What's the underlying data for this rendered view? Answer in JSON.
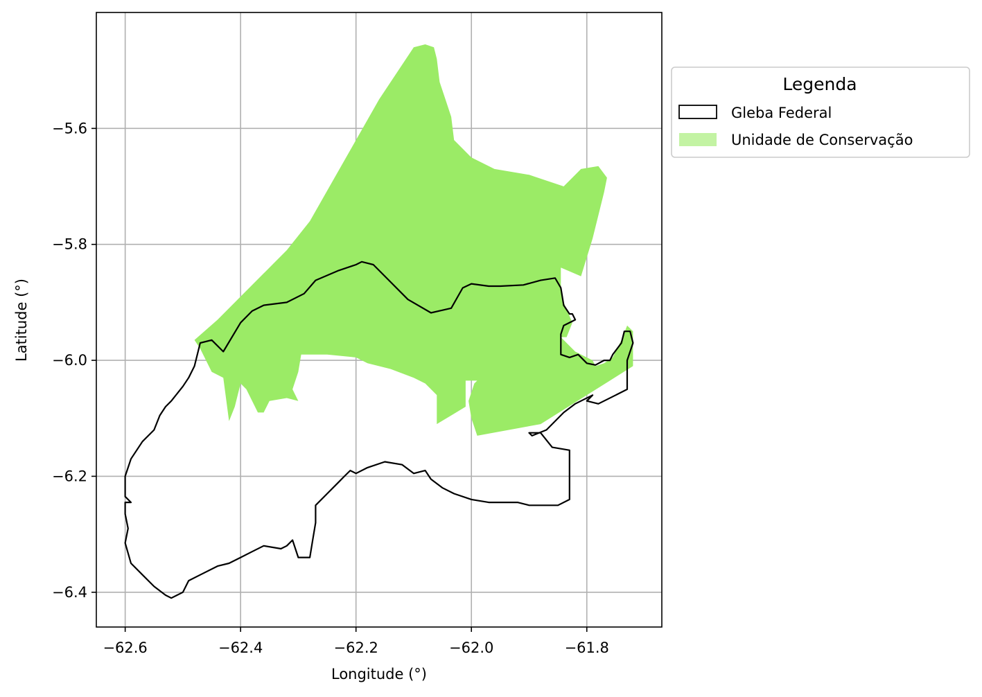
{
  "chart_data": {
    "type": "map",
    "xlabel": "Longitude (°)",
    "ylabel": "Latitude (°)",
    "xlim": [
      -62.65,
      -61.67
    ],
    "ylim": [
      -6.46,
      -5.4
    ],
    "grid": true,
    "x_ticks": [
      -62.6,
      -62.4,
      -62.2,
      -62.0,
      -61.8
    ],
    "y_ticks": [
      -5.6,
      -5.8,
      -6.0,
      -6.2,
      -6.4
    ],
    "x_tick_labels": [
      "−62.6",
      "−62.4",
      "−62.2",
      "−62.0",
      "−61.8"
    ],
    "y_tick_labels": [
      "−5.6",
      "−5.8",
      "−6.0",
      "−6.2",
      "−6.4"
    ],
    "legend": {
      "title": "Legenda",
      "placement": "outside upper right",
      "entries": [
        {
          "label": "Gleba Federal",
          "style": "outline",
          "color": "#000000"
        },
        {
          "label": "Unidade de Conservação",
          "style": "fill",
          "color": "#9beb66"
        }
      ]
    },
    "layers": [
      {
        "name": "Unidade de Conservação",
        "fill": "#9beb66",
        "coords": [
          [
            -62.48,
            -5.965
          ],
          [
            -62.44,
            -5.93
          ],
          [
            -62.32,
            -5.81
          ],
          [
            -62.28,
            -5.76
          ],
          [
            -62.16,
            -5.55
          ],
          [
            -62.1,
            -5.46
          ],
          [
            -62.08,
            -5.455
          ],
          [
            -62.065,
            -5.46
          ],
          [
            -62.06,
            -5.48
          ],
          [
            -62.055,
            -5.52
          ],
          [
            -62.045,
            -5.55
          ],
          [
            -62.035,
            -5.58
          ],
          [
            -62.03,
            -5.62
          ],
          [
            -62.0,
            -5.65
          ],
          [
            -61.96,
            -5.67
          ],
          [
            -61.9,
            -5.68
          ],
          [
            -61.84,
            -5.7
          ],
          [
            -61.81,
            -5.67
          ],
          [
            -61.78,
            -5.665
          ],
          [
            -61.765,
            -5.685
          ],
          [
            -61.77,
            -5.71
          ],
          [
            -61.78,
            -5.75
          ],
          [
            -61.79,
            -5.79
          ],
          [
            -61.81,
            -5.855
          ],
          [
            -61.845,
            -5.84
          ],
          [
            -61.845,
            -5.87
          ],
          [
            -61.84,
            -5.9
          ],
          [
            -61.825,
            -5.935
          ],
          [
            -61.835,
            -5.96
          ],
          [
            -61.845,
            -5.96
          ],
          [
            -61.83,
            -5.975
          ],
          [
            -61.82,
            -5.985
          ],
          [
            -61.81,
            -5.99
          ],
          [
            -61.79,
            -6.0
          ],
          [
            -61.785,
            -6.01
          ],
          [
            -61.77,
            -6.005
          ],
          [
            -61.755,
            -5.995
          ],
          [
            -61.74,
            -5.965
          ],
          [
            -61.73,
            -5.94
          ],
          [
            -61.72,
            -5.95
          ],
          [
            -61.72,
            -6.01
          ],
          [
            -61.76,
            -6.035
          ],
          [
            -61.88,
            -6.11
          ],
          [
            -61.99,
            -6.13
          ],
          [
            -62.0,
            -6.1
          ],
          [
            -62.005,
            -6.07
          ],
          [
            -61.995,
            -6.04
          ],
          [
            -61.99,
            -6.035
          ],
          [
            -62.01,
            -6.035
          ],
          [
            -62.01,
            -6.08
          ],
          [
            -62.035,
            -6.095
          ],
          [
            -62.06,
            -6.11
          ],
          [
            -62.06,
            -6.06
          ],
          [
            -62.08,
            -6.04
          ],
          [
            -62.1,
            -6.03
          ],
          [
            -62.14,
            -6.015
          ],
          [
            -62.18,
            -6.005
          ],
          [
            -62.2,
            -5.995
          ],
          [
            -62.25,
            -5.99
          ],
          [
            -62.295,
            -5.99
          ],
          [
            -62.3,
            -6.02
          ],
          [
            -62.31,
            -6.05
          ],
          [
            -62.3,
            -6.07
          ],
          [
            -62.32,
            -6.065
          ],
          [
            -62.35,
            -6.07
          ],
          [
            -62.36,
            -6.09
          ],
          [
            -62.37,
            -6.09
          ],
          [
            -62.39,
            -6.05
          ],
          [
            -62.4,
            -6.04
          ],
          [
            -62.41,
            -6.08
          ],
          [
            -62.42,
            -6.105
          ],
          [
            -62.43,
            -6.03
          ],
          [
            -62.45,
            -6.02
          ],
          [
            -62.47,
            -5.98
          ]
        ]
      },
      {
        "name": "Gleba Federal",
        "stroke": "#000000",
        "coords": [
          [
            -62.47,
            -5.97
          ],
          [
            -62.45,
            -5.965
          ],
          [
            -62.43,
            -5.985
          ],
          [
            -62.4,
            -5.935
          ],
          [
            -62.38,
            -5.915
          ],
          [
            -62.36,
            -5.905
          ],
          [
            -62.32,
            -5.9
          ],
          [
            -62.29,
            -5.885
          ],
          [
            -62.27,
            -5.862
          ],
          [
            -62.23,
            -5.845
          ],
          [
            -62.2,
            -5.835
          ],
          [
            -62.19,
            -5.83
          ],
          [
            -62.17,
            -5.835
          ],
          [
            -62.14,
            -5.865
          ],
          [
            -62.11,
            -5.895
          ],
          [
            -62.07,
            -5.918
          ],
          [
            -62.035,
            -5.91
          ],
          [
            -62.015,
            -5.875
          ],
          [
            -62.0,
            -5.868
          ],
          [
            -61.97,
            -5.872
          ],
          [
            -61.95,
            -5.872
          ],
          [
            -61.91,
            -5.87
          ],
          [
            -61.88,
            -5.862
          ],
          [
            -61.855,
            -5.858
          ],
          [
            -61.845,
            -5.875
          ],
          [
            -61.84,
            -5.905
          ],
          [
            -61.83,
            -5.92
          ],
          [
            -61.825,
            -5.92
          ],
          [
            -61.82,
            -5.93
          ],
          [
            -61.84,
            -5.94
          ],
          [
            -61.845,
            -5.955
          ],
          [
            -61.845,
            -5.99
          ],
          [
            -61.83,
            -5.995
          ],
          [
            -61.815,
            -5.99
          ],
          [
            -61.8,
            -6.005
          ],
          [
            -61.785,
            -6.008
          ],
          [
            -61.77,
            -6.0
          ],
          [
            -61.76,
            -6.0
          ],
          [
            -61.755,
            -5.99
          ],
          [
            -61.74,
            -5.97
          ],
          [
            -61.735,
            -5.95
          ],
          [
            -61.725,
            -5.95
          ],
          [
            -61.72,
            -5.97
          ],
          [
            -61.73,
            -6.0
          ],
          [
            -61.73,
            -6.05
          ],
          [
            -61.75,
            -6.06
          ],
          [
            -61.78,
            -6.075
          ],
          [
            -61.8,
            -6.07
          ],
          [
            -61.79,
            -6.06
          ],
          [
            -61.82,
            -6.075
          ],
          [
            -61.84,
            -6.09
          ],
          [
            -61.87,
            -6.12
          ],
          [
            -61.895,
            -6.13
          ],
          [
            -61.9,
            -6.125
          ],
          [
            -61.88,
            -6.125
          ],
          [
            -61.86,
            -6.15
          ],
          [
            -61.83,
            -6.155
          ],
          [
            -61.83,
            -6.24
          ],
          [
            -61.85,
            -6.25
          ],
          [
            -61.9,
            -6.25
          ],
          [
            -61.92,
            -6.245
          ],
          [
            -61.97,
            -6.245
          ],
          [
            -62.0,
            -6.24
          ],
          [
            -62.03,
            -6.23
          ],
          [
            -62.05,
            -6.22
          ],
          [
            -62.07,
            -6.205
          ],
          [
            -62.08,
            -6.19
          ],
          [
            -62.1,
            -6.195
          ],
          [
            -62.12,
            -6.18
          ],
          [
            -62.15,
            -6.175
          ],
          [
            -62.18,
            -6.185
          ],
          [
            -62.2,
            -6.195
          ],
          [
            -62.21,
            -6.19
          ],
          [
            -62.22,
            -6.2
          ],
          [
            -62.23,
            -6.21
          ],
          [
            -62.25,
            -6.23
          ],
          [
            -62.27,
            -6.25
          ],
          [
            -62.27,
            -6.28
          ],
          [
            -62.275,
            -6.31
          ],
          [
            -62.28,
            -6.34
          ],
          [
            -62.3,
            -6.34
          ],
          [
            -62.31,
            -6.31
          ],
          [
            -62.32,
            -6.32
          ],
          [
            -62.33,
            -6.325
          ],
          [
            -62.36,
            -6.32
          ],
          [
            -62.38,
            -6.33
          ],
          [
            -62.4,
            -6.34
          ],
          [
            -62.42,
            -6.35
          ],
          [
            -62.44,
            -6.355
          ],
          [
            -62.47,
            -6.37
          ],
          [
            -62.49,
            -6.38
          ],
          [
            -62.5,
            -6.4
          ],
          [
            -62.52,
            -6.41
          ],
          [
            -62.53,
            -6.405
          ],
          [
            -62.55,
            -6.39
          ],
          [
            -62.57,
            -6.37
          ],
          [
            -62.59,
            -6.35
          ],
          [
            -62.6,
            -6.315
          ],
          [
            -62.595,
            -6.29
          ],
          [
            -62.6,
            -6.265
          ],
          [
            -62.6,
            -6.245
          ],
          [
            -62.59,
            -6.245
          ],
          [
            -62.6,
            -6.235
          ],
          [
            -62.6,
            -6.2
          ],
          [
            -62.59,
            -6.17
          ],
          [
            -62.57,
            -6.14
          ],
          [
            -62.55,
            -6.12
          ],
          [
            -62.54,
            -6.095
          ],
          [
            -62.53,
            -6.08
          ],
          [
            -62.52,
            -6.07
          ],
          [
            -62.5,
            -6.045
          ],
          [
            -62.49,
            -6.03
          ],
          [
            -62.48,
            -6.01
          ]
        ]
      }
    ]
  }
}
